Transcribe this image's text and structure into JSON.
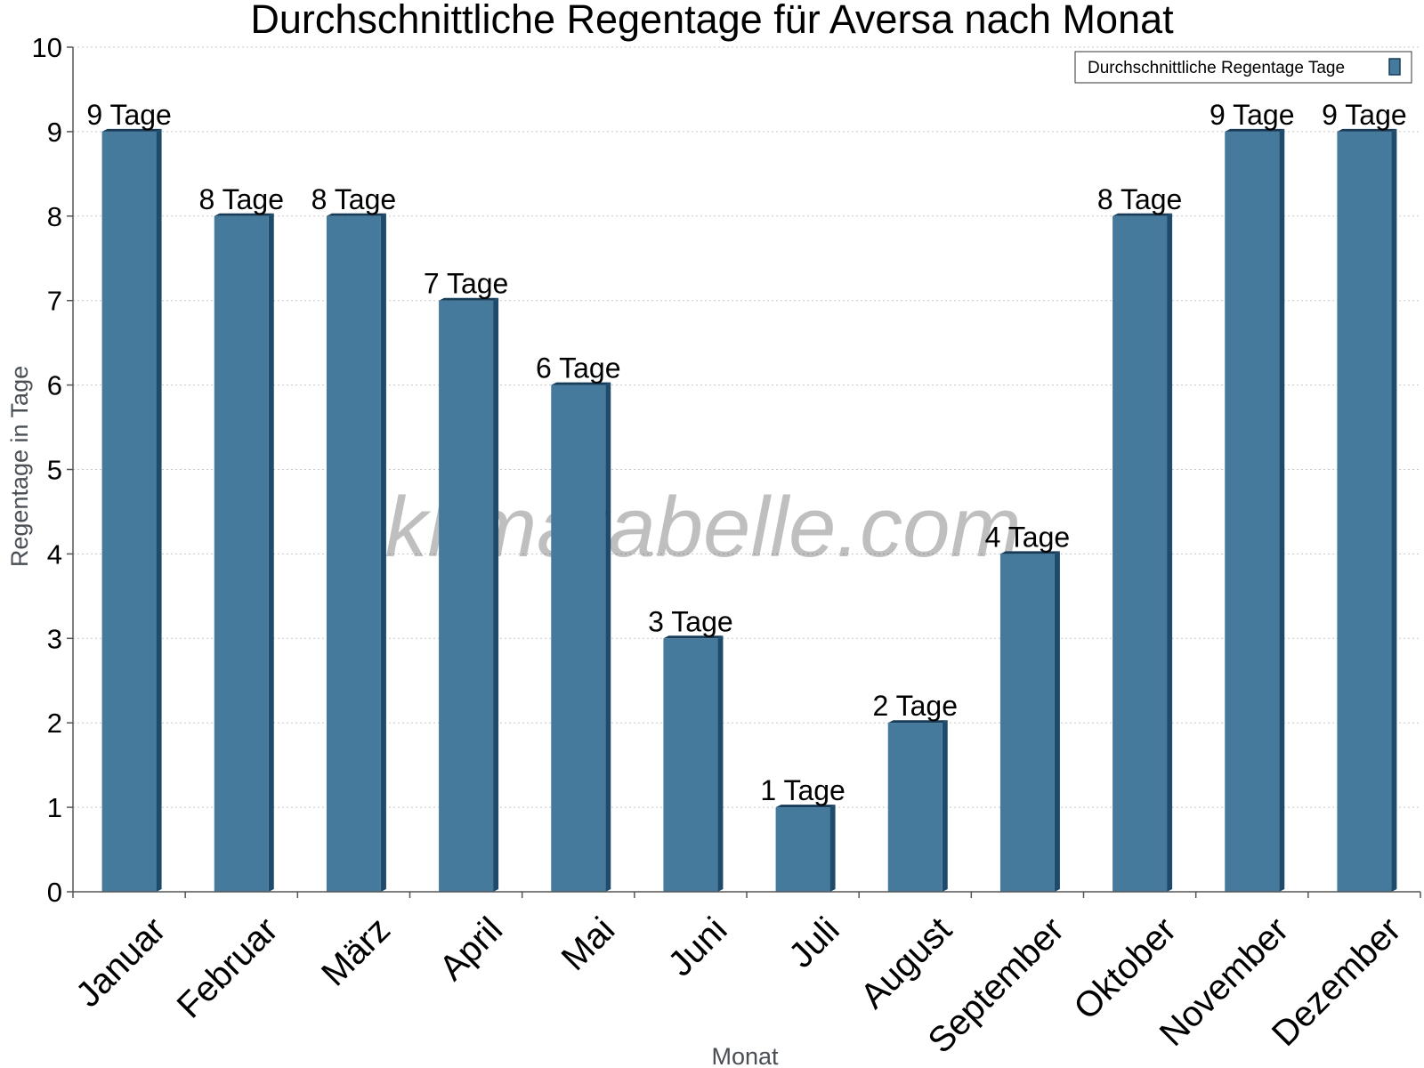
{
  "chart_data": {
    "type": "bar",
    "title": "Durchschnittliche Regentage für Aversa nach Monat",
    "xlabel": "Monat",
    "ylabel": "Regentage in Tage",
    "ylim": [
      0,
      10
    ],
    "yticks": [
      "0",
      "1",
      "2",
      "3",
      "4",
      "5",
      "6",
      "7",
      "8",
      "9",
      "10"
    ],
    "grid": true,
    "legend_position": "top-right",
    "categories": [
      "Januar",
      "Februar",
      "März",
      "April",
      "Mai",
      "Juni",
      "Juli",
      "August",
      "September",
      "Oktober",
      "November",
      "Dezember"
    ],
    "series": [
      {
        "name": "Durchschnittliche Regentage Tage",
        "values": [
          9,
          8,
          8,
          7,
          6,
          3,
          1,
          2,
          4,
          8,
          9,
          9
        ],
        "labels": [
          "9 Tage",
          "8 Tage",
          "8 Tage",
          "7 Tage",
          "6 Tage",
          "3 Tage",
          "1 Tage",
          "2 Tage",
          "4 Tage",
          "8 Tage",
          "9 Tage",
          "9 Tage"
        ]
      }
    ],
    "colors": {
      "bar": "#467a9c",
      "bar_side": "#1e4a6b",
      "bar_top": "#173c59",
      "axis": "#555555",
      "grid": "#c8c8c8"
    }
  },
  "watermark": "klimatabelle.com"
}
